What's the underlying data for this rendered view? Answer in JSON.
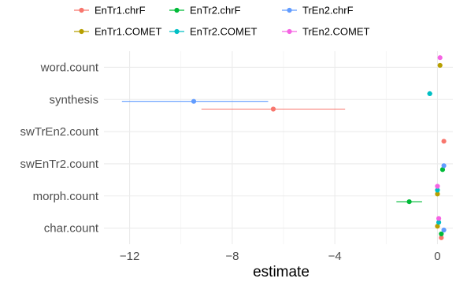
{
  "chart_data": {
    "type": "scatter",
    "subtype": "coefficient-plot",
    "title": "",
    "xlabel": "estimate",
    "ylabel": "",
    "xlim": [
      -13.0,
      0.6
    ],
    "xticks": [
      -12,
      -8,
      -4,
      0
    ],
    "xtick_labels": [
      "−12",
      "−8",
      "−4",
      "0"
    ],
    "categories": [
      "word.count",
      "synthesis",
      "swTrEn2.count",
      "swEnTr2.count",
      "morph.count",
      "char.count"
    ],
    "grid": true,
    "legend_position": "top",
    "series": [
      {
        "name": "EnTr1.chrF",
        "color": "#F8766D",
        "points": [
          {
            "category": "synthesis",
            "estimate": -6.4,
            "low": -9.2,
            "high": -3.6
          },
          {
            "category": "swTrEn2.count",
            "estimate": 0.25,
            "low": 0.25,
            "high": 0.25
          },
          {
            "category": "char.count",
            "estimate": 0.15,
            "low": 0.15,
            "high": 0.15
          }
        ]
      },
      {
        "name": "EnTr2.chrF",
        "color": "#00BA38",
        "points": [
          {
            "category": "swEnTr2.count",
            "estimate": 0.2,
            "low": 0.2,
            "high": 0.2
          },
          {
            "category": "morph.count",
            "estimate": -1.1,
            "low": -1.6,
            "high": -0.6
          },
          {
            "category": "char.count",
            "estimate": 0.15,
            "low": 0.15,
            "high": 0.15
          }
        ]
      },
      {
        "name": "TrEn2.chrF",
        "color": "#619CFF",
        "points": [
          {
            "category": "synthesis",
            "estimate": -9.5,
            "low": -12.3,
            "high": -6.6
          },
          {
            "category": "swEnTr2.count",
            "estimate": 0.25,
            "low": 0.25,
            "high": 0.25
          },
          {
            "category": "char.count",
            "estimate": 0.25,
            "low": 0.25,
            "high": 0.25
          }
        ]
      },
      {
        "name": "EnTr1.COMET",
        "color": "#B79F00",
        "points": [
          {
            "category": "word.count",
            "estimate": 0.1,
            "low": 0.1,
            "high": 0.1
          },
          {
            "category": "morph.count",
            "estimate": 0.0,
            "low": 0.0,
            "high": 0.0
          },
          {
            "category": "char.count",
            "estimate": 0.0,
            "low": 0.0,
            "high": 0.0
          }
        ]
      },
      {
        "name": "EnTr2.COMET",
        "color": "#00BFC4",
        "points": [
          {
            "category": "synthesis",
            "estimate": -0.3,
            "low": -0.4,
            "high": -0.2
          },
          {
            "category": "morph.count",
            "estimate": 0.0,
            "low": 0.0,
            "high": 0.0
          },
          {
            "category": "char.count",
            "estimate": 0.05,
            "low": 0.05,
            "high": 0.05
          }
        ]
      },
      {
        "name": "TrEn2.COMET",
        "color": "#F564E3",
        "points": [
          {
            "category": "word.count",
            "estimate": 0.1,
            "low": 0.1,
            "high": 0.1
          },
          {
            "category": "morph.count",
            "estimate": 0.0,
            "low": 0.0,
            "high": 0.0
          },
          {
            "category": "char.count",
            "estimate": 0.05,
            "low": 0.05,
            "high": 0.05
          }
        ]
      }
    ]
  }
}
